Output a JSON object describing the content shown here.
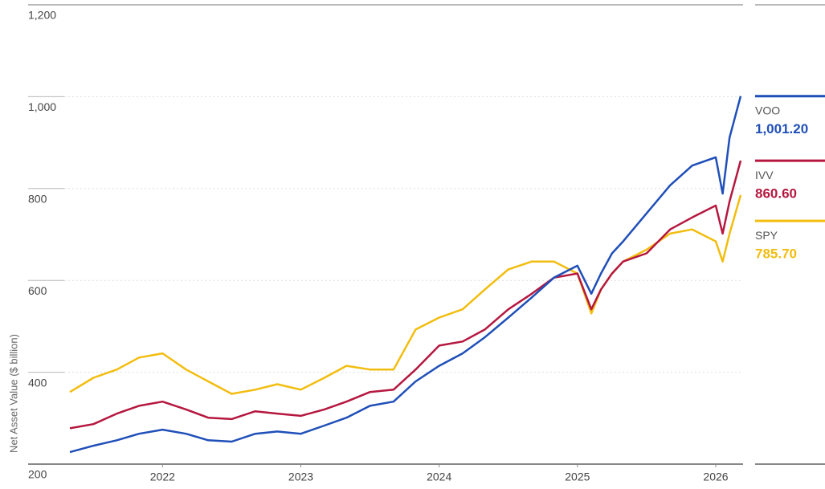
{
  "chart_data": {
    "type": "line",
    "y_label": "Net Asset Value ($ billion)",
    "x": [
      2021.33,
      2021.5,
      2021.67,
      2021.83,
      2022.0,
      2022.17,
      2022.33,
      2022.5,
      2022.67,
      2022.83,
      2023.0,
      2023.17,
      2023.33,
      2023.5,
      2023.67,
      2023.83,
      2024.0,
      2024.17,
      2024.33,
      2024.5,
      2024.67,
      2024.83,
      2025.0,
      2025.1,
      2025.17,
      2025.25,
      2025.33,
      2025.5,
      2025.67,
      2025.83,
      2026.0,
      2026.05,
      2026.1,
      2026.18
    ],
    "series": [
      {
        "name": "VOO",
        "color": "#1f4fb8",
        "end_label": "1,001.20",
        "values": [
          226,
          240,
          252,
          266,
          275,
          266,
          252,
          249,
          266,
          271,
          266,
          284,
          301,
          327,
          336,
          380,
          414,
          441,
          476,
          519,
          563,
          606,
          632,
          571,
          615,
          659,
          685,
          746,
          807,
          850,
          868,
          789,
          911,
          1001.2
        ]
      },
      {
        "name": "IVV",
        "color": "#b5173f",
        "end_label": "860.60",
        "values": [
          278,
          287,
          310,
          327,
          336,
          319,
          301,
          298,
          315,
          310,
          305,
          319,
          336,
          357,
          362,
          406,
          458,
          467,
          493,
          537,
          571,
          606,
          615,
          537,
          580,
          615,
          641,
          659,
          711,
          737,
          763,
          702,
          772,
          860.6
        ]
      },
      {
        "name": "SPY",
        "color": "#f2bd0f",
        "end_label": "785.70",
        "values": [
          357,
          388,
          406,
          432,
          441,
          406,
          380,
          353,
          362,
          374,
          362,
          388,
          414,
          406,
          406,
          493,
          519,
          537,
          580,
          624,
          641,
          641,
          615,
          528,
          580,
          615,
          641,
          667,
          702,
          711,
          685,
          641,
          702,
          785.7
        ]
      }
    ],
    "xlim": [
      2021.33,
      2026.18
    ],
    "xticks": [
      2022,
      2023,
      2024,
      2025,
      2026
    ],
    "ylim": [
      200,
      1200
    ],
    "yticks": [
      200,
      400,
      600,
      800,
      {
        "value": 1000,
        "label": "1,000"
      },
      {
        "value": 1200,
        "label": "1,200"
      }
    ],
    "grid": true
  }
}
